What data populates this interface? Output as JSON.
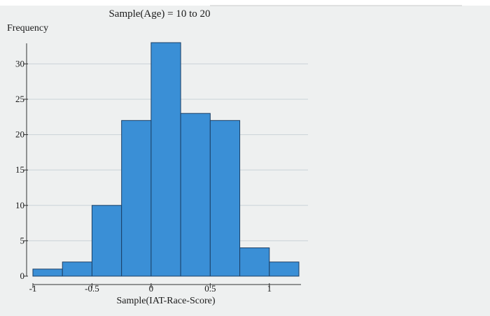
{
  "chart_data": {
    "type": "bar",
    "title": "Sample(Age) = 10 to 20",
    "xlabel": "Sample(IAT-Race-Score)",
    "ylabel": "Frequency",
    "bin_edges": [
      -1.0,
      -0.75,
      -0.5,
      -0.25,
      0.0,
      0.25,
      0.5,
      0.75,
      1.0,
      1.25
    ],
    "values": [
      1,
      2,
      10,
      22,
      33,
      23,
      22,
      4,
      2
    ],
    "xlim": [
      -1.0,
      1.25
    ],
    "ylim": [
      0,
      33
    ],
    "x_ticks": [
      -1,
      -0.5,
      0,
      0.5,
      1
    ],
    "x_tick_labels": [
      "-1",
      "-0.5",
      "0",
      "0.5",
      "1"
    ],
    "y_ticks": [
      0,
      5,
      10,
      15,
      20,
      25,
      30
    ],
    "y_tick_labels": [
      "0",
      "5",
      "10",
      "15",
      "20",
      "25",
      "30"
    ],
    "grid": "horizontal",
    "bar_color": "#3a8fd6",
    "bar_edge_color": "#1b3f66"
  }
}
